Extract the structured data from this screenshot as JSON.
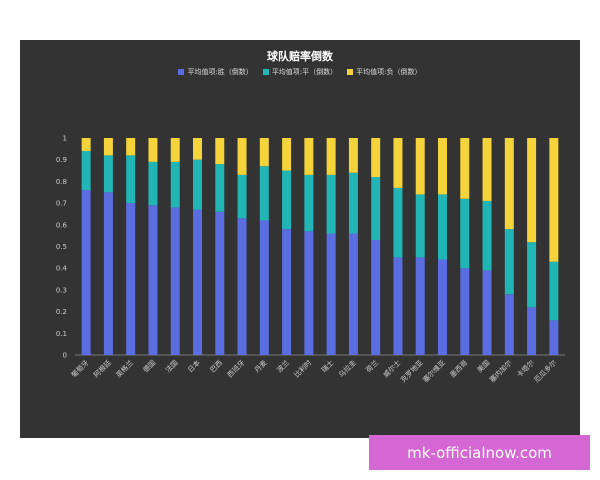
{
  "chart_data": {
    "type": "bar",
    "stacked": true,
    "title": "球队赔率倒数",
    "categories": [
      "葡萄牙",
      "阿根廷",
      "英格兰",
      "德国",
      "法国",
      "日本",
      "巴西",
      "西班牙",
      "丹麦",
      "波兰",
      "比利时",
      "瑞士",
      "乌拉圭",
      "荷兰",
      "威尔士",
      "克罗地亚",
      "塞尔维亚",
      "墨西哥",
      "美国",
      "塞内加尔",
      "卡塔尔",
      "厄瓜多尔"
    ],
    "series": [
      {
        "name": "平均值项:胜（倒数）",
        "color": "#5b6ee1",
        "values": [
          0.76,
          0.75,
          0.7,
          0.69,
          0.68,
          0.67,
          0.66,
          0.63,
          0.62,
          0.58,
          0.57,
          0.56,
          0.56,
          0.53,
          0.45,
          0.45,
          0.44,
          0.4,
          0.39,
          0.28,
          0.22,
          0.16
        ]
      },
      {
        "name": "平均值项:平（倒数）",
        "color": "#22b5b5",
        "values": [
          0.18,
          0.17,
          0.22,
          0.2,
          0.21,
          0.23,
          0.22,
          0.2,
          0.25,
          0.27,
          0.26,
          0.27,
          0.28,
          0.29,
          0.32,
          0.29,
          0.3,
          0.32,
          0.32,
          0.3,
          0.3,
          0.27
        ]
      },
      {
        "name": "平均值项:负（倒数）",
        "color": "#f5d33a",
        "values": [
          0.06,
          0.08,
          0.08,
          0.11,
          0.11,
          0.1,
          0.12,
          0.17,
          0.13,
          0.15,
          0.17,
          0.17,
          0.16,
          0.18,
          0.23,
          0.26,
          0.26,
          0.28,
          0.29,
          0.42,
          0.48,
          0.57
        ]
      }
    ],
    "yticks": [
      "0",
      "0.1",
      "0.2",
      "0.3",
      "0.4",
      "0.5",
      "0.6",
      "0.7",
      "0.8",
      "0.9",
      "1"
    ],
    "ylim": [
      0,
      1
    ],
    "grid": false,
    "legend": "top-center"
  },
  "watermark": "mk-officialnow.com"
}
